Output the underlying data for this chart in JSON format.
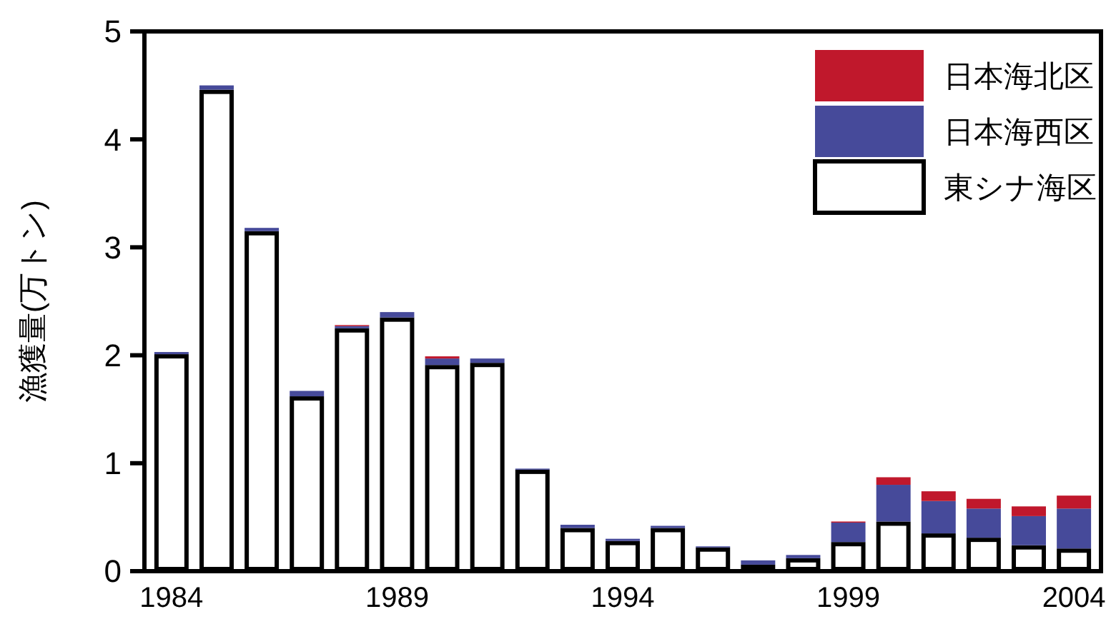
{
  "chart_data": {
    "type": "bar",
    "stacked": true,
    "ylabel": "漁獲量(万トン)",
    "x": [
      1984,
      1985,
      1986,
      1987,
      1988,
      1989,
      1990,
      1991,
      1992,
      1993,
      1994,
      1995,
      1996,
      1997,
      1998,
      1999,
      2000,
      2001,
      2002,
      2003,
      2004
    ],
    "xlim": [
      1983.4,
      2004.6
    ],
    "xticks": [
      1984,
      1989,
      1994,
      1999,
      2004
    ],
    "ylim": [
      0,
      5
    ],
    "yticks": [
      0,
      1,
      2,
      3,
      4,
      5
    ],
    "legend": "top right",
    "series": [
      {
        "name": "東シナ海区",
        "color": "#ffffff",
        "values": [
          2.01,
          4.46,
          3.15,
          1.62,
          2.25,
          2.35,
          1.91,
          1.93,
          0.94,
          0.4,
          0.28,
          0.4,
          0.22,
          0.06,
          0.12,
          0.27,
          0.46,
          0.35,
          0.31,
          0.24,
          0.21
        ]
      },
      {
        "name": "日本海西区",
        "color": "#464a9a",
        "values": [
          0.02,
          0.04,
          0.03,
          0.05,
          0.02,
          0.05,
          0.06,
          0.04,
          0.01,
          0.03,
          0.02,
          0.02,
          0.01,
          0.04,
          0.03,
          0.18,
          0.34,
          0.3,
          0.27,
          0.27,
          0.37
        ]
      },
      {
        "name": "日本海北区",
        "color": "#c0182c",
        "values": [
          0,
          0,
          0,
          0,
          0.01,
          0,
          0.02,
          0,
          0,
          0,
          0,
          0,
          0,
          0,
          0,
          0.01,
          0.07,
          0.09,
          0.09,
          0.09,
          0.12
        ]
      }
    ]
  }
}
